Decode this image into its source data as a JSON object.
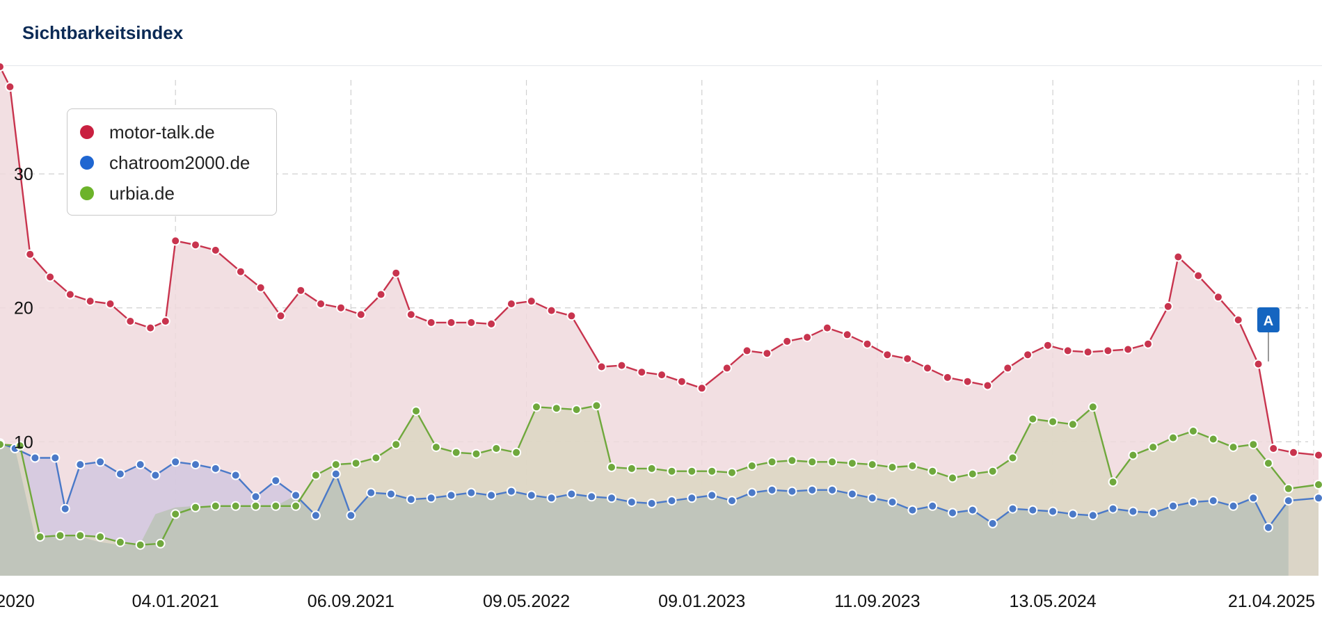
{
  "card": {
    "title": "Sichtbarkeitsindex"
  },
  "colors": {
    "motor": "#c8344e",
    "motor_dot": "#c92040",
    "motor_fill": "#f0d9dd",
    "chat": "#4a79c8",
    "chat_dot": "#1f66d1",
    "chat_fill": "#d2c8df",
    "urbia": "#6fa83c",
    "urbia_dot": "#6cb32a",
    "urbia_fill": "#dcd7c2",
    "base_fill": "#bdc3b9",
    "grid": "#d0d0d0",
    "marker": "#1565c0"
  },
  "chart_data": {
    "type": "area",
    "x_start": "2020-05-04",
    "x_end": "2025-05-19",
    "x_ticks": [
      "2020",
      "04.01.2021",
      "06.09.2021",
      "09.05.2022",
      "09.01.2023",
      "11.09.2023",
      "13.05.2024",
      "21.04.2025"
    ],
    "y_ticks": [
      "10",
      "20",
      "30"
    ],
    "ylim": [
      0,
      38
    ],
    "grid": true,
    "legend_position": "top-left",
    "series": [
      {
        "name": "motor-talk.de",
        "color_key": "motor",
        "points": [
          [
            "2020-05-04",
            38.0
          ],
          [
            "2020-05-18",
            36.5
          ],
          [
            "2020-06-15",
            24.0
          ],
          [
            "2020-07-13",
            22.3
          ],
          [
            "2020-08-10",
            21.0
          ],
          [
            "2020-09-07",
            20.5
          ],
          [
            "2020-10-05",
            20.3
          ],
          [
            "2020-11-02",
            19.0
          ],
          [
            "2020-11-30",
            18.5
          ],
          [
            "2020-12-21",
            19.0
          ],
          [
            "2021-01-04",
            25.0
          ],
          [
            "2021-02-01",
            24.7
          ],
          [
            "2021-03-01",
            24.3
          ],
          [
            "2021-04-05",
            22.7
          ],
          [
            "2021-05-03",
            21.5
          ],
          [
            "2021-05-31",
            19.4
          ],
          [
            "2021-06-28",
            21.3
          ],
          [
            "2021-07-26",
            20.3
          ],
          [
            "2021-08-23",
            20.0
          ],
          [
            "2021-09-20",
            19.5
          ],
          [
            "2021-10-18",
            21.0
          ],
          [
            "2021-11-08",
            22.6
          ],
          [
            "2021-11-29",
            19.5
          ],
          [
            "2021-12-27",
            18.9
          ],
          [
            "2022-01-24",
            18.9
          ],
          [
            "2022-02-21",
            18.9
          ],
          [
            "2022-03-21",
            18.8
          ],
          [
            "2022-04-18",
            20.3
          ],
          [
            "2022-05-16",
            20.5
          ],
          [
            "2022-06-13",
            19.8
          ],
          [
            "2022-07-11",
            19.4
          ],
          [
            "2022-08-22",
            15.6
          ],
          [
            "2022-09-19",
            15.7
          ],
          [
            "2022-10-17",
            15.2
          ],
          [
            "2022-11-14",
            15.0
          ],
          [
            "2022-12-12",
            14.5
          ],
          [
            "2023-01-09",
            14.0
          ],
          [
            "2023-02-13",
            15.5
          ],
          [
            "2023-03-13",
            16.8
          ],
          [
            "2023-04-10",
            16.6
          ],
          [
            "2023-05-08",
            17.5
          ],
          [
            "2023-06-05",
            17.8
          ],
          [
            "2023-07-03",
            18.5
          ],
          [
            "2023-07-31",
            18.0
          ],
          [
            "2023-08-28",
            17.3
          ],
          [
            "2023-09-25",
            16.5
          ],
          [
            "2023-10-23",
            16.2
          ],
          [
            "2023-11-20",
            15.5
          ],
          [
            "2023-12-18",
            14.8
          ],
          [
            "2024-01-15",
            14.5
          ],
          [
            "2024-02-12",
            14.2
          ],
          [
            "2024-03-11",
            15.5
          ],
          [
            "2024-04-08",
            16.5
          ],
          [
            "2024-05-06",
            17.2
          ],
          [
            "2024-06-03",
            16.8
          ],
          [
            "2024-07-01",
            16.7
          ],
          [
            "2024-07-29",
            16.8
          ],
          [
            "2024-08-26",
            16.9
          ],
          [
            "2024-09-23",
            17.3
          ],
          [
            "2024-10-21",
            20.1
          ],
          [
            "2024-11-04",
            23.8
          ],
          [
            "2024-12-02",
            22.4
          ],
          [
            "2024-12-30",
            20.8
          ],
          [
            "2025-01-27",
            19.1
          ],
          [
            "2025-02-24",
            15.8
          ],
          [
            "2025-03-17",
            9.5
          ],
          [
            "2025-04-14",
            9.2
          ],
          [
            "2025-05-19",
            9.0
          ]
        ]
      },
      {
        "name": "chatroom2000.de",
        "color_key": "chat",
        "points": [
          [
            "2020-05-04",
            9.9
          ],
          [
            "2020-05-25",
            9.5
          ],
          [
            "2020-06-22",
            8.8
          ],
          [
            "2020-07-20",
            8.8
          ],
          [
            "2020-08-03",
            5.0
          ],
          [
            "2020-08-24",
            8.3
          ],
          [
            "2020-09-21",
            8.5
          ],
          [
            "2020-10-19",
            7.6
          ],
          [
            "2020-11-16",
            8.3
          ],
          [
            "2020-12-07",
            7.5
          ],
          [
            "2021-01-04",
            8.5
          ],
          [
            "2021-02-01",
            8.3
          ],
          [
            "2021-03-01",
            8.0
          ],
          [
            "2021-03-29",
            7.5
          ],
          [
            "2021-04-26",
            5.9
          ],
          [
            "2021-05-24",
            7.1
          ],
          [
            "2021-06-21",
            6.0
          ],
          [
            "2021-07-19",
            4.5
          ],
          [
            "2021-08-16",
            7.6
          ],
          [
            "2021-09-06",
            4.5
          ],
          [
            "2021-10-04",
            6.2
          ],
          [
            "2021-11-01",
            6.1
          ],
          [
            "2021-11-29",
            5.7
          ],
          [
            "2021-12-27",
            5.8
          ],
          [
            "2022-01-24",
            6.0
          ],
          [
            "2022-02-21",
            6.2
          ],
          [
            "2022-03-21",
            6.0
          ],
          [
            "2022-04-18",
            6.3
          ],
          [
            "2022-05-16",
            6.0
          ],
          [
            "2022-06-13",
            5.8
          ],
          [
            "2022-07-11",
            6.1
          ],
          [
            "2022-08-08",
            5.9
          ],
          [
            "2022-09-05",
            5.8
          ],
          [
            "2022-10-03",
            5.5
          ],
          [
            "2022-10-31",
            5.4
          ],
          [
            "2022-11-28",
            5.6
          ],
          [
            "2022-12-26",
            5.8
          ],
          [
            "2023-01-23",
            6.0
          ],
          [
            "2023-02-20",
            5.6
          ],
          [
            "2023-03-20",
            6.2
          ],
          [
            "2023-04-17",
            6.4
          ],
          [
            "2023-05-15",
            6.3
          ],
          [
            "2023-06-12",
            6.4
          ],
          [
            "2023-07-10",
            6.4
          ],
          [
            "2023-08-07",
            6.1
          ],
          [
            "2023-09-04",
            5.8
          ],
          [
            "2023-10-02",
            5.5
          ],
          [
            "2023-10-30",
            4.9
          ],
          [
            "2023-11-27",
            5.2
          ],
          [
            "2023-12-25",
            4.7
          ],
          [
            "2024-01-22",
            4.9
          ],
          [
            "2024-02-19",
            3.9
          ],
          [
            "2024-03-18",
            5.0
          ],
          [
            "2024-04-15",
            4.9
          ],
          [
            "2024-05-13",
            4.8
          ],
          [
            "2024-06-10",
            4.6
          ],
          [
            "2024-07-08",
            4.5
          ],
          [
            "2024-08-05",
            5.0
          ],
          [
            "2024-09-02",
            4.8
          ],
          [
            "2024-09-30",
            4.7
          ],
          [
            "2024-10-28",
            5.2
          ],
          [
            "2024-11-25",
            5.5
          ],
          [
            "2024-12-23",
            5.6
          ],
          [
            "2025-01-20",
            5.2
          ],
          [
            "2025-02-17",
            5.8
          ],
          [
            "2025-03-10",
            3.6
          ],
          [
            "2025-04-07",
            5.6
          ],
          [
            "2025-05-19",
            5.8
          ]
        ]
      },
      {
        "name": "urbia.de",
        "color_key": "urbia",
        "points": [
          [
            "2020-05-04",
            9.8
          ],
          [
            "2020-06-01",
            9.7
          ],
          [
            "2020-06-29",
            2.9
          ],
          [
            "2020-07-27",
            3.0
          ],
          [
            "2020-08-24",
            3.0
          ],
          [
            "2020-09-21",
            2.9
          ],
          [
            "2020-10-19",
            2.5
          ],
          [
            "2020-11-16",
            2.3
          ],
          [
            "2020-12-14",
            2.4
          ],
          [
            "2021-01-04",
            4.6
          ],
          [
            "2021-02-01",
            5.1
          ],
          [
            "2021-03-01",
            5.2
          ],
          [
            "2021-03-29",
            5.2
          ],
          [
            "2021-04-26",
            5.2
          ],
          [
            "2021-05-24",
            5.2
          ],
          [
            "2021-06-21",
            5.2
          ],
          [
            "2021-07-19",
            7.5
          ],
          [
            "2021-08-16",
            8.3
          ],
          [
            "2021-09-13",
            8.4
          ],
          [
            "2021-10-11",
            8.8
          ],
          [
            "2021-11-08",
            9.8
          ],
          [
            "2021-12-06",
            12.3
          ],
          [
            "2022-01-03",
            9.6
          ],
          [
            "2022-01-31",
            9.2
          ],
          [
            "2022-02-28",
            9.1
          ],
          [
            "2022-03-28",
            9.5
          ],
          [
            "2022-04-25",
            9.2
          ],
          [
            "2022-05-23",
            12.6
          ],
          [
            "2022-06-20",
            12.5
          ],
          [
            "2022-07-18",
            12.4
          ],
          [
            "2022-08-15",
            12.7
          ],
          [
            "2022-09-05",
            8.1
          ],
          [
            "2022-10-03",
            8.0
          ],
          [
            "2022-10-31",
            8.0
          ],
          [
            "2022-11-28",
            7.8
          ],
          [
            "2022-12-26",
            7.8
          ],
          [
            "2023-01-23",
            7.8
          ],
          [
            "2023-02-20",
            7.7
          ],
          [
            "2023-03-20",
            8.2
          ],
          [
            "2023-04-17",
            8.5
          ],
          [
            "2023-05-15",
            8.6
          ],
          [
            "2023-06-12",
            8.5
          ],
          [
            "2023-07-10",
            8.5
          ],
          [
            "2023-08-07",
            8.4
          ],
          [
            "2023-09-04",
            8.3
          ],
          [
            "2023-10-02",
            8.1
          ],
          [
            "2023-10-30",
            8.2
          ],
          [
            "2023-11-27",
            7.8
          ],
          [
            "2023-12-25",
            7.3
          ],
          [
            "2024-01-22",
            7.6
          ],
          [
            "2024-02-19",
            7.8
          ],
          [
            "2024-03-18",
            8.8
          ],
          [
            "2024-04-15",
            11.7
          ],
          [
            "2024-05-13",
            11.5
          ],
          [
            "2024-06-10",
            11.3
          ],
          [
            "2024-07-08",
            12.6
          ],
          [
            "2024-08-05",
            7.0
          ],
          [
            "2024-09-02",
            9.0
          ],
          [
            "2024-09-30",
            9.6
          ],
          [
            "2024-10-28",
            10.3
          ],
          [
            "2024-11-25",
            10.8
          ],
          [
            "2024-12-23",
            10.2
          ],
          [
            "2025-01-20",
            9.6
          ],
          [
            "2025-02-17",
            9.8
          ],
          [
            "2025-03-10",
            8.4
          ],
          [
            "2025-04-07",
            6.5
          ],
          [
            "2025-05-19",
            6.8
          ]
        ]
      }
    ],
    "annotations": [
      {
        "label": "A",
        "date": "2025-03-10"
      }
    ]
  }
}
